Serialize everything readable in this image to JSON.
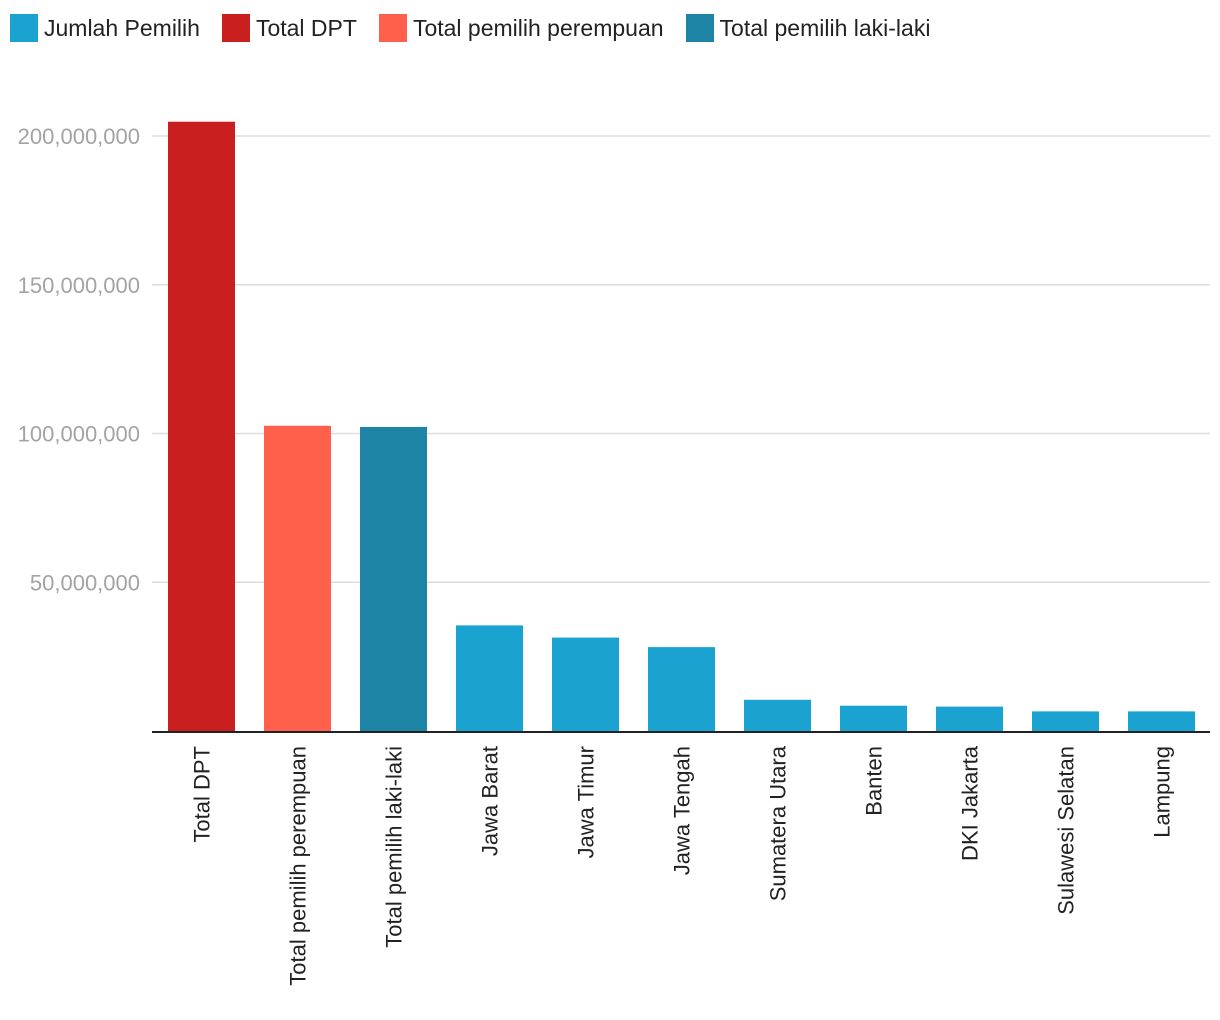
{
  "legend": [
    {
      "label": "Jumlah Pemilih",
      "color": "#1aa3d0"
    },
    {
      "label": "Total DPT",
      "color": "#c91f1f"
    },
    {
      "label": "Total pemilih perempuan",
      "color": "#ff604c"
    },
    {
      "label": "Total pemilih laki-laki",
      "color": "#1e84a5"
    }
  ],
  "chart_data": {
    "type": "bar",
    "title": "",
    "xlabel": "",
    "ylabel": "",
    "ylim": [
      0,
      200000000
    ],
    "yticks": [
      50000000,
      100000000,
      150000000,
      200000000
    ],
    "ytick_labels": [
      "50,000,000",
      "100,000,000",
      "150,000,000",
      "200,000,000"
    ],
    "grid": true,
    "legend_position": "top-left",
    "categories": [
      "Total DPT",
      "Total pemilih perempuan",
      "Total pemilih laki-laki",
      "Jawa Barat",
      "Jawa Timur",
      "Jawa Tengah",
      "Sumatera Utara",
      "Banten",
      "DKI Jakarta",
      "Sulawesi Selatan",
      "Lampung"
    ],
    "values": [
      204800000,
      102600000,
      102200000,
      35500000,
      31400000,
      28200000,
      10500000,
      8500000,
      8200000,
      6600000,
      6600000
    ],
    "colors": [
      "#c91f1f",
      "#ff604c",
      "#1e84a5",
      "#1aa3d0",
      "#1aa3d0",
      "#1aa3d0",
      "#1aa3d0",
      "#1aa3d0",
      "#1aa3d0",
      "#1aa3d0",
      "#1aa3d0"
    ]
  }
}
